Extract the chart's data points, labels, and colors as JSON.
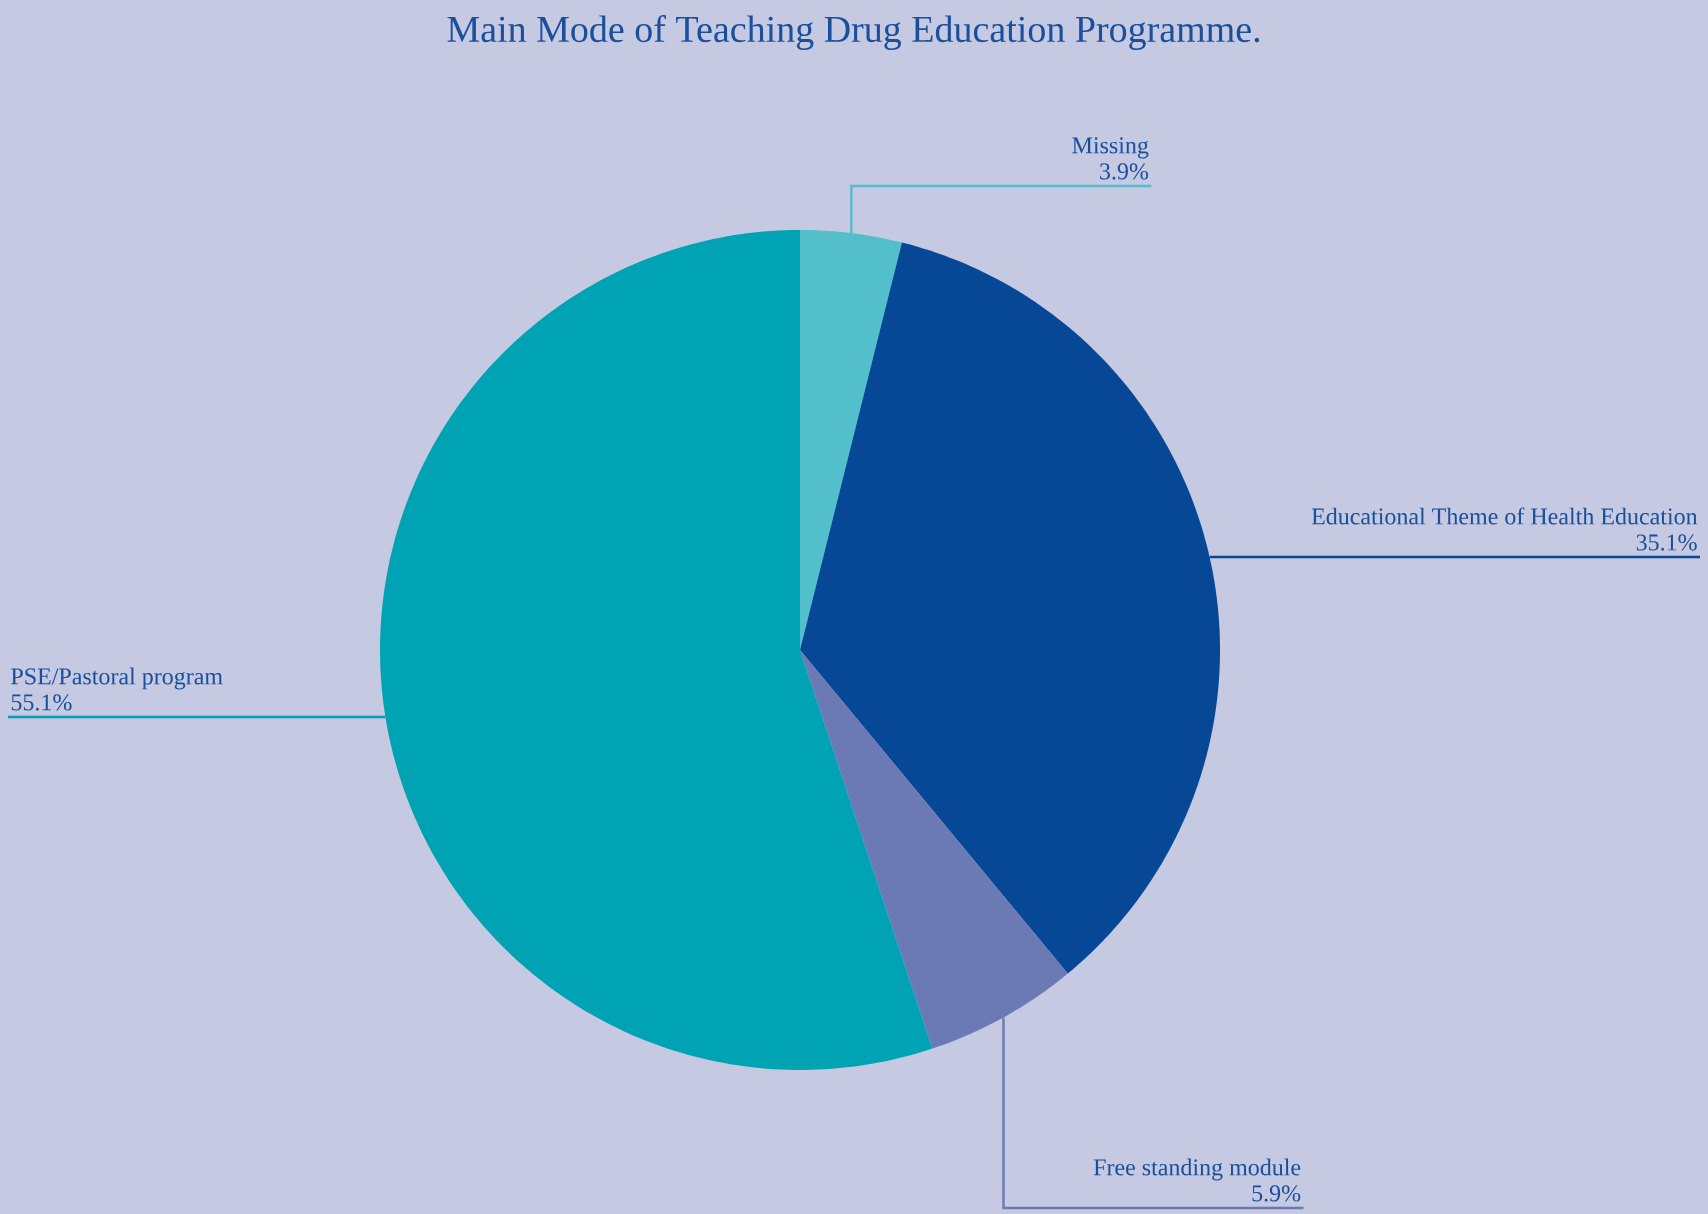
{
  "chart_data": {
    "type": "pie",
    "title": "Main Mode of Teaching Drug Education Programme.",
    "categories": [
      "Missing",
      "Educational Theme of Health Education",
      "Free standing module",
      "PSE/Pastoral program"
    ],
    "values": [
      3.9,
      35.1,
      5.9,
      55.1
    ],
    "value_labels": [
      "3.9%",
      "35.1%",
      "5.9%",
      "55.1%"
    ],
    "colors": [
      "#52bfca",
      "#064896",
      "#6b7ab5",
      "#00a3b3"
    ]
  }
}
